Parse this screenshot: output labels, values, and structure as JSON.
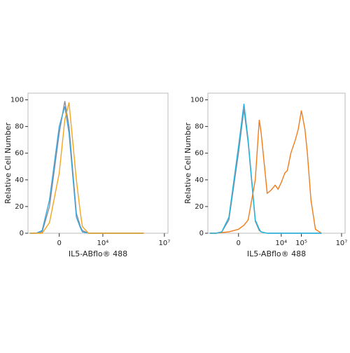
{
  "chart_data": [
    {
      "type": "line",
      "x_label": "IL5-ABflo® 488",
      "y_label": "Relative Cell Number",
      "x": [
        -2000,
        -1000,
        -500,
        -200,
        0,
        100,
        200,
        500,
        800,
        1000,
        2000,
        3000,
        5000,
        7000,
        10000,
        15000,
        20000,
        30000,
        50000,
        70000,
        100000,
        150000,
        200000,
        300000,
        500000,
        1000000
      ],
      "xscale": "asinh",
      "xlim": [
        -2500,
        15000000
      ],
      "xticks": [
        0,
        {
          "value": 10000,
          "label": "10⁴"
        },
        {
          "value": 10000000,
          "label": "10⁷"
        }
      ],
      "ylim": [
        0,
        105
      ],
      "yticks": [
        0,
        20,
        40,
        60,
        80,
        100
      ],
      "series": [
        {
          "color": "#8c8c9c",
          "values": [
            0,
            0,
            1,
            20,
            75,
            99,
            80,
            15,
            5,
            2,
            0,
            0,
            0,
            0,
            0,
            0,
            0,
            0,
            0,
            0,
            0,
            0,
            0,
            0,
            0,
            0
          ]
        },
        {
          "color": "#3aa6dc",
          "values": [
            0,
            0,
            2,
            25,
            80,
            95,
            75,
            12,
            4,
            1,
            0,
            0,
            0,
            0,
            0,
            0,
            0,
            0,
            0,
            0,
            0,
            0,
            0,
            0,
            0,
            0
          ]
        },
        {
          "color": "#f2a51e",
          "values": [
            0,
            0,
            0,
            8,
            45,
            85,
            98,
            40,
            15,
            5,
            0,
            0,
            0,
            0,
            0,
            0,
            0,
            0,
            0,
            0,
            0,
            0,
            0,
            0,
            0,
            0
          ]
        }
      ]
    },
    {
      "type": "line",
      "x_label": "IL5-ABflo® 488",
      "y_label": "Relative Cell Number",
      "x": [
        -2000,
        -1000,
        -500,
        -200,
        0,
        100,
        200,
        500,
        800,
        1000,
        2000,
        3000,
        5000,
        7000,
        10000,
        15000,
        20000,
        30000,
        50000,
        70000,
        100000,
        150000,
        200000,
        300000,
        500000,
        1000000
      ],
      "xscale": "asinh",
      "xlim": [
        -2500,
        15000000
      ],
      "xticks": [
        0,
        {
          "value": 10000,
          "label": "10⁴"
        },
        {
          "value": 100000,
          "label": "10⁵"
        },
        {
          "value": 10000000,
          "label": "10⁷"
        }
      ],
      "ylim": [
        0,
        105
      ],
      "yticks": [
        0,
        20,
        40,
        60,
        80,
        100
      ],
      "series": [
        {
          "color": "#8c8c9c",
          "values": [
            0,
            0,
            1,
            10,
            60,
            93,
            68,
            9,
            2,
            1,
            0,
            0,
            0,
            0,
            0,
            0,
            0,
            0,
            0,
            0,
            0,
            0,
            0,
            0,
            0,
            0
          ]
        },
        {
          "color": "#f07c1a",
          "values": [
            0,
            0,
            0.5,
            1,
            3,
            6,
            10,
            40,
            85,
            75,
            30,
            32,
            36,
            33,
            38,
            45,
            47,
            60,
            70,
            78,
            92,
            78,
            60,
            25,
            3,
            0
          ]
        },
        {
          "color": "#1fb5e0",
          "values": [
            0,
            0,
            1,
            12,
            65,
            97,
            70,
            10,
            3,
            1,
            0,
            0,
            0,
            0,
            0,
            0,
            0,
            0,
            0,
            0,
            0,
            0,
            0,
            0,
            0,
            0
          ]
        }
      ]
    }
  ]
}
